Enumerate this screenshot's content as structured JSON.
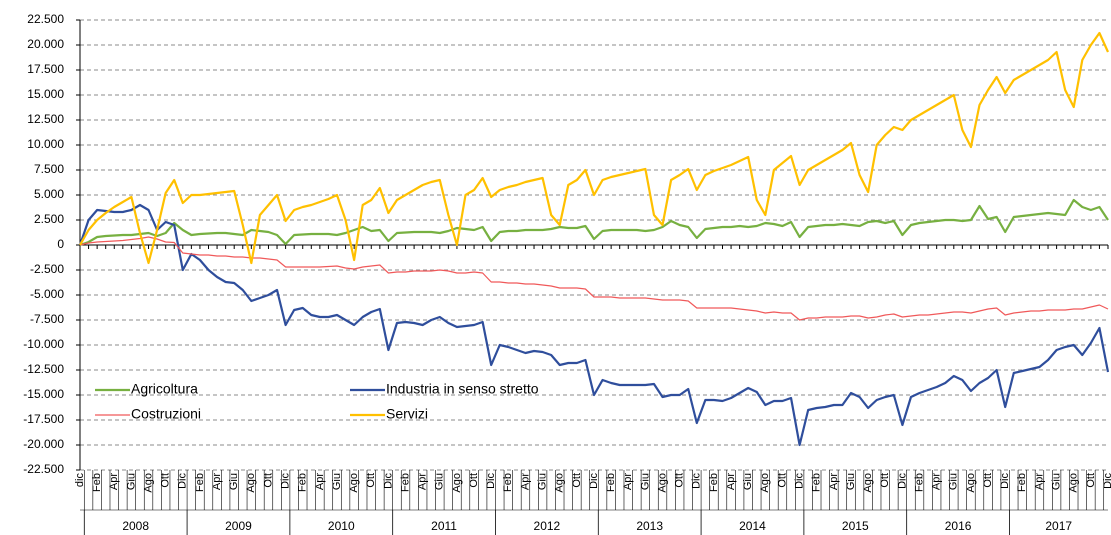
{
  "chart_data": {
    "type": "line",
    "categories": [
      "dic",
      null,
      "Feb",
      null,
      "Apr",
      null,
      "Giu",
      null,
      "Ago",
      null,
      "Ott",
      null,
      "Dic",
      null,
      "Feb",
      null,
      "Apr",
      null,
      "Giu",
      null,
      "Ago",
      null,
      "Ott",
      null,
      "Dic",
      null,
      "Feb",
      null,
      "Apr",
      null,
      "Giu",
      null,
      "Ago",
      null,
      "Ott",
      null,
      "Dic",
      null,
      "Feb",
      null,
      "Apr",
      null,
      "Giu",
      null,
      "Ago",
      null,
      "Ott",
      null,
      "Dic",
      null,
      "Feb",
      null,
      "Apr",
      null,
      "Giu",
      null,
      "Ago",
      null,
      "Ott",
      null,
      "Dic",
      null,
      "Feb",
      null,
      "Apr",
      null,
      "Giu",
      null,
      "Ago",
      null,
      "Ott",
      null,
      "Dic",
      null,
      "Feb",
      null,
      "Apr",
      null,
      "Giu",
      null,
      "Ago",
      null,
      "Ott",
      null,
      "Dic",
      null,
      "Feb",
      null,
      "Apr",
      null,
      "Giu",
      null,
      "Ago",
      null,
      "Ott",
      null,
      "Dic",
      null,
      "Feb",
      null,
      "Apr",
      null,
      "Giu",
      null,
      "Ago",
      null,
      "Ott",
      null,
      "Dic",
      null,
      "Feb",
      null,
      "Apr",
      null,
      "Giu",
      null,
      "Ago",
      null,
      "Ott",
      null,
      "Dic"
    ],
    "years": [
      "2008",
      "2009",
      "2010",
      "2011",
      "2012",
      "2013",
      "2014",
      "2015",
      "2016",
      "2017"
    ],
    "series": [
      {
        "name": "Agricoltura",
        "color": "#77b041",
        "values": [
          0,
          300,
          800,
          900,
          950,
          1000,
          1000,
          1100,
          1200,
          900,
          1200,
          2200,
          1500,
          1000,
          1100,
          1150,
          1200,
          1200,
          1100,
          1000,
          1500,
          1400,
          1300,
          1000,
          100,
          1000,
          1050,
          1100,
          1100,
          1100,
          1000,
          1200,
          1500,
          1800,
          1400,
          1500,
          400,
          1200,
          1250,
          1300,
          1300,
          1300,
          1200,
          1400,
          1700,
          1600,
          1500,
          1800,
          400,
          1300,
          1400,
          1400,
          1500,
          1500,
          1500,
          1600,
          1800,
          1700,
          1700,
          1900,
          600,
          1400,
          1500,
          1500,
          1500,
          1500,
          1400,
          1500,
          1800,
          2400,
          2000,
          1800,
          700,
          1600,
          1700,
          1800,
          1800,
          1900,
          1800,
          1900,
          2200,
          2100,
          1900,
          2300,
          800,
          1800,
          1900,
          2000,
          2000,
          2100,
          2000,
          1900,
          2300,
          2400,
          2200,
          2400,
          1000,
          2000,
          2200,
          2300,
          2400,
          2500,
          2500,
          2400,
          2500,
          3900,
          2600,
          2800,
          1300,
          2800,
          2900,
          3000,
          3100,
          3200,
          3100,
          3000,
          4500,
          3800,
          3500,
          3800,
          2500
        ]
      },
      {
        "name": "Industria in senso stretto",
        "color": "#2f4e9c",
        "values": [
          0,
          2500,
          3500,
          3400,
          3300,
          3300,
          3500,
          4000,
          3500,
          1500,
          2300,
          2000,
          -2500,
          -900,
          -1500,
          -2500,
          -3200,
          -3700,
          -3800,
          -4500,
          -5600,
          -5300,
          -5000,
          -4500,
          -8000,
          -6500,
          -6300,
          -7000,
          -7200,
          -7200,
          -7000,
          -7500,
          -8000,
          -7200,
          -6700,
          -6400,
          -10500,
          -7800,
          -7700,
          -7800,
          -8000,
          -7500,
          -7200,
          -7800,
          -8200,
          -8100,
          -8000,
          -7700,
          -12000,
          -10000,
          -10200,
          -10500,
          -10800,
          -10600,
          -10700,
          -11000,
          -12000,
          -11800,
          -11800,
          -11500,
          -15000,
          -13500,
          -13800,
          -14000,
          -14000,
          -14000,
          -14000,
          -13900,
          -15200,
          -15000,
          -15000,
          -14400,
          -17800,
          -15500,
          -15500,
          -15600,
          -15300,
          -14800,
          -14300,
          -14700,
          -16000,
          -15600,
          -15600,
          -15300,
          -20000,
          -16500,
          -16300,
          -16200,
          -16000,
          -16000,
          -14800,
          -15200,
          -16300,
          -15500,
          -15200,
          -15000,
          -18000,
          -15200,
          -14800,
          -14500,
          -14200,
          -13800,
          -13100,
          -13500,
          -14600,
          -13800,
          -13300,
          -12500,
          -16200,
          -12800,
          -12600,
          -12400,
          -12200,
          -11500,
          -10500,
          -10200,
          -10000,
          -11000,
          -9800,
          -8300,
          -12700
        ]
      },
      {
        "name": "Costruzioni",
        "color": "#f0595a",
        "values": [
          0,
          200,
          300,
          350,
          400,
          450,
          550,
          650,
          800,
          600,
          300,
          250,
          -800,
          -900,
          -1000,
          -1000,
          -1100,
          -1100,
          -1200,
          -1200,
          -1300,
          -1300,
          -1400,
          -1500,
          -2200,
          -2200,
          -2200,
          -2200,
          -2200,
          -2150,
          -2100,
          -2300,
          -2400,
          -2200,
          -2100,
          -2000,
          -2800,
          -2700,
          -2700,
          -2600,
          -2600,
          -2600,
          -2500,
          -2600,
          -2800,
          -2800,
          -2700,
          -2800,
          -3700,
          -3700,
          -3800,
          -3800,
          -3900,
          -3900,
          -4000,
          -4100,
          -4300,
          -4300,
          -4300,
          -4400,
          -5200,
          -5200,
          -5200,
          -5300,
          -5300,
          -5300,
          -5300,
          -5400,
          -5500,
          -5500,
          -5500,
          -5600,
          -6300,
          -6300,
          -6300,
          -6300,
          -6300,
          -6400,
          -6500,
          -6600,
          -6800,
          -6700,
          -6800,
          -6800,
          -7500,
          -7300,
          -7300,
          -7200,
          -7200,
          -7200,
          -7100,
          -7100,
          -7300,
          -7200,
          -7000,
          -6900,
          -7200,
          -7100,
          -7000,
          -7000,
          -6900,
          -6800,
          -6700,
          -6700,
          -6800,
          -6600,
          -6400,
          -6300,
          -7000,
          -6800,
          -6700,
          -6600,
          -6600,
          -6500,
          -6500,
          -6500,
          -6400,
          -6400,
          -6200,
          -6000,
          -6400
        ]
      },
      {
        "name": "Servizi",
        "color": "#ffc000",
        "values": [
          0,
          1500,
          2500,
          3200,
          3800,
          4300,
          4800,
          1200,
          -1800,
          1500,
          5200,
          6500,
          4200,
          5000,
          5000,
          5100,
          5200,
          5300,
          5400,
          2000,
          -1800,
          3000,
          4000,
          5000,
          2400,
          3500,
          3800,
          4000,
          4300,
          4600,
          5000,
          2500,
          -1500,
          4000,
          4500,
          5700,
          3200,
          4500,
          5000,
          5500,
          6000,
          6300,
          6500,
          3000,
          0,
          5000,
          5500,
          6700,
          4800,
          5500,
          5800,
          6000,
          6300,
          6500,
          6700,
          3000,
          2000,
          6000,
          6500,
          7500,
          5000,
          6500,
          6800,
          7000,
          7200,
          7400,
          7600,
          3000,
          2000,
          6500,
          7000,
          7600,
          5500,
          7000,
          7400,
          7700,
          8000,
          8400,
          8800,
          4500,
          3000,
          7500,
          8200,
          8900,
          6000,
          7500,
          8000,
          8500,
          9000,
          9500,
          10200,
          7000,
          5300,
          10000,
          11000,
          11800,
          11500,
          12500,
          13000,
          13500,
          14000,
          14500,
          15000,
          11500,
          9800,
          14000,
          15500,
          16800,
          15200,
          16500,
          17000,
          17500,
          18000,
          18500,
          19300,
          15500,
          13800,
          18500,
          20000,
          21200,
          19300
        ]
      }
    ],
    "ylim": [
      -22500,
      22500
    ],
    "yticks": [
      {
        "value": 22500,
        "label": "22.500"
      },
      {
        "value": 20000,
        "label": "20.000"
      },
      {
        "value": 17500,
        "label": "17.500"
      },
      {
        "value": 15000,
        "label": "15.000"
      },
      {
        "value": 12500,
        "label": "12.500"
      },
      {
        "value": 10000,
        "label": "10.000"
      },
      {
        "value": 7500,
        "label": "7.500"
      },
      {
        "value": 5000,
        "label": "5.000"
      },
      {
        "value": 2500,
        "label": "2.500"
      },
      0,
      {
        "value": -2500,
        "label": "-2.500"
      },
      {
        "value": -5000,
        "label": "-5.000"
      },
      {
        "value": -7500,
        "label": "-7.500"
      },
      {
        "value": -10000,
        "label": "-10.000"
      },
      {
        "value": -12500,
        "label": "-12.500"
      },
      {
        "value": -15000,
        "label": "-15.000"
      },
      {
        "value": -17500,
        "label": "-17.500"
      },
      {
        "value": -20000,
        "label": "-20.000"
      },
      {
        "value": -22500,
        "label": "-22.500"
      }
    ],
    "grid": true,
    "legend": "lower left"
  }
}
